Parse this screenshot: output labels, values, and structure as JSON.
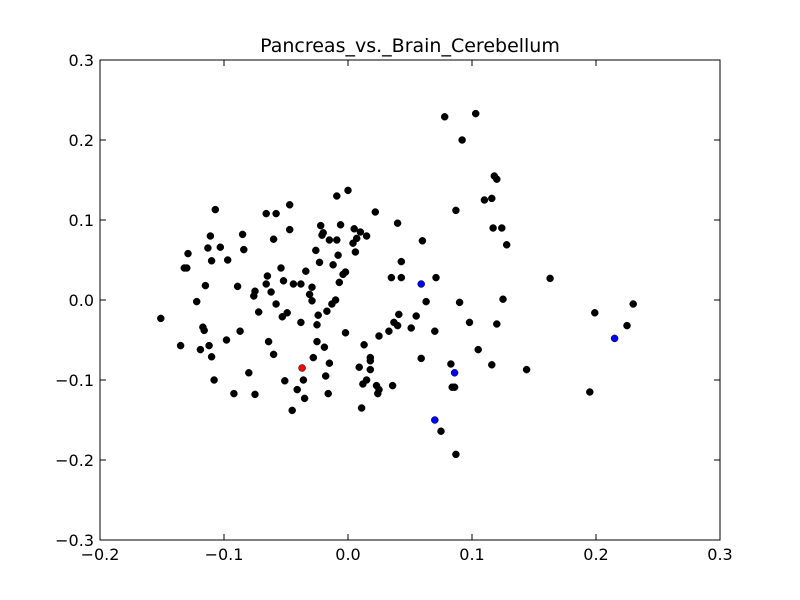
{
  "chart_data": {
    "type": "scatter",
    "title": "Pancreas_vs._Brain_Cerebellum",
    "xlabel": "",
    "ylabel": "",
    "xlim": [
      -0.2,
      0.3
    ],
    "ylim": [
      -0.3,
      0.3
    ],
    "x_ticks": [
      -0.2,
      -0.1,
      0.0,
      0.1,
      0.2,
      0.3
    ],
    "y_ticks": [
      -0.3,
      -0.2,
      -0.1,
      0.0,
      0.1,
      0.2,
      0.3
    ],
    "x_tick_labels": [
      "−0.2",
      "−0.1",
      "0.0",
      "0.1",
      "0.2",
      "0.3"
    ],
    "y_tick_labels": [
      "−0.3",
      "−0.2",
      "−0.1",
      "0.0",
      "0.1",
      "0.2",
      "0.3"
    ],
    "grid": false,
    "legend": "none",
    "series": [
      {
        "color": "#000000",
        "points": [
          [
            -0.151,
            -0.023
          ],
          [
            -0.135,
            -0.057
          ],
          [
            -0.132,
            0.04
          ],
          [
            -0.13,
            0.04
          ],
          [
            -0.129,
            0.058
          ],
          [
            -0.122,
            -0.002
          ],
          [
            -0.119,
            -0.062
          ],
          [
            -0.117,
            -0.034
          ],
          [
            -0.116,
            -0.038
          ],
          [
            -0.115,
            0.018
          ],
          [
            -0.113,
            0.065
          ],
          [
            -0.112,
            -0.057
          ],
          [
            -0.111,
            0.08
          ],
          [
            -0.11,
            0.049
          ],
          [
            -0.11,
            -0.071
          ],
          [
            -0.108,
            -0.1
          ],
          [
            -0.107,
            0.113
          ],
          [
            -0.103,
            0.066
          ],
          [
            -0.098,
            -0.05
          ],
          [
            -0.097,
            0.05
          ],
          [
            -0.092,
            -0.117
          ],
          [
            -0.089,
            0.017
          ],
          [
            -0.087,
            -0.039
          ],
          [
            -0.085,
            0.082
          ],
          [
            -0.084,
            0.063
          ],
          [
            -0.08,
            -0.091
          ],
          [
            -0.076,
            0.005
          ],
          [
            -0.075,
            -0.118
          ],
          [
            -0.075,
            0.011
          ],
          [
            -0.072,
            -0.015
          ],
          [
            -0.066,
            0.108
          ],
          [
            -0.066,
            0.02
          ],
          [
            -0.065,
            0.03
          ],
          [
            -0.064,
            -0.052
          ],
          [
            -0.062,
            0.01
          ],
          [
            -0.06,
            0.076
          ],
          [
            -0.06,
            -0.068
          ],
          [
            -0.058,
            0.108
          ],
          [
            -0.058,
            -0.005
          ],
          [
            -0.054,
            0.04
          ],
          [
            -0.053,
            -0.021
          ],
          [
            -0.052,
            0.024
          ],
          [
            -0.051,
            -0.101
          ],
          [
            -0.049,
            -0.016
          ],
          [
            -0.047,
            0.088
          ],
          [
            -0.047,
            0.119
          ],
          [
            -0.045,
            -0.138
          ],
          [
            -0.044,
            0.02
          ],
          [
            -0.041,
            -0.112
          ],
          [
            -0.038,
            -0.028
          ],
          [
            -0.038,
            0.02
          ],
          [
            -0.036,
            -0.1
          ],
          [
            -0.035,
            -0.123
          ],
          [
            -0.034,
            0.036
          ],
          [
            -0.031,
            0.007
          ],
          [
            -0.029,
            -0.001
          ],
          [
            -0.029,
            0.016
          ],
          [
            -0.028,
            -0.072
          ],
          [
            -0.026,
            0.062
          ],
          [
            -0.025,
            -0.031
          ],
          [
            -0.025,
            -0.052
          ],
          [
            -0.024,
            -0.019
          ],
          [
            -0.023,
            0.047
          ],
          [
            -0.022,
            0.093
          ],
          [
            -0.021,
            0.081
          ],
          [
            -0.02,
            0.084
          ],
          [
            -0.019,
            -0.059
          ],
          [
            -0.018,
            -0.095
          ],
          [
            -0.017,
            -0.014
          ],
          [
            -0.016,
            -0.117
          ],
          [
            -0.015,
            0.075
          ],
          [
            -0.015,
            -0.079
          ],
          [
            -0.013,
            -0.005
          ],
          [
            -0.012,
            0.044
          ],
          [
            -0.01,
            0.0
          ],
          [
            -0.009,
            0.075
          ],
          [
            -0.009,
            0.13
          ],
          [
            -0.008,
            0.056
          ],
          [
            -0.007,
            0.022
          ],
          [
            -0.006,
            0.094
          ],
          [
            -0.004,
            0.032
          ],
          [
            -0.002,
            -0.041
          ],
          [
            -0.002,
            0.035
          ],
          [
            0.0,
            0.137
          ],
          [
            0.004,
            0.071
          ],
          [
            0.005,
            0.089
          ],
          [
            0.006,
            0.06
          ],
          [
            0.007,
            0.077
          ],
          [
            0.009,
            -0.084
          ],
          [
            0.01,
            0.085
          ],
          [
            0.011,
            -0.135
          ],
          [
            0.012,
            -0.105
          ],
          [
            0.013,
            -0.056
          ],
          [
            0.015,
            0.08
          ],
          [
            0.015,
            -0.1
          ],
          [
            0.018,
            -0.072
          ],
          [
            0.018,
            -0.076
          ],
          [
            0.018,
            -0.087
          ],
          [
            0.022,
            0.11
          ],
          [
            0.023,
            -0.107
          ],
          [
            0.024,
            -0.117
          ],
          [
            0.025,
            -0.045
          ],
          [
            0.025,
            -0.112
          ],
          [
            0.033,
            -0.039
          ],
          [
            0.035,
            0.028
          ],
          [
            0.036,
            -0.107
          ],
          [
            0.037,
            -0.028
          ],
          [
            0.04,
            0.096
          ],
          [
            0.04,
            -0.032
          ],
          [
            0.041,
            -0.018
          ],
          [
            0.043,
            0.028
          ],
          [
            0.043,
            0.048
          ],
          [
            0.051,
            -0.035
          ],
          [
            0.055,
            -0.02
          ],
          [
            0.059,
            -0.073
          ],
          [
            0.06,
            0.074
          ],
          [
            0.063,
            -0.002
          ],
          [
            0.07,
            -0.039
          ],
          [
            0.071,
            0.028
          ],
          [
            0.075,
            -0.164
          ],
          [
            0.078,
            0.229
          ],
          [
            0.083,
            -0.08
          ],
          [
            0.084,
            -0.109
          ],
          [
            0.086,
            -0.109
          ],
          [
            0.087,
            0.112
          ],
          [
            0.087,
            -0.193
          ],
          [
            0.09,
            -0.003
          ],
          [
            0.092,
            0.2
          ],
          [
            0.098,
            -0.028
          ],
          [
            0.103,
            0.233
          ],
          [
            0.105,
            -0.062
          ],
          [
            0.11,
            0.125
          ],
          [
            0.116,
            0.127
          ],
          [
            0.116,
            -0.081
          ],
          [
            0.117,
            0.09
          ],
          [
            0.118,
            0.155
          ],
          [
            0.12,
            0.151
          ],
          [
            0.12,
            -0.03
          ],
          [
            0.124,
            0.09
          ],
          [
            0.125,
            0.001
          ],
          [
            0.128,
            0.069
          ],
          [
            0.144,
            -0.087
          ],
          [
            0.163,
            0.027
          ],
          [
            0.195,
            -0.115
          ],
          [
            0.199,
            -0.016
          ],
          [
            0.225,
            -0.032
          ],
          [
            0.23,
            -0.005
          ]
        ]
      },
      {
        "color": "#0000ff",
        "points": [
          [
            0.059,
            0.02
          ],
          [
            0.086,
            -0.091
          ],
          [
            0.07,
            -0.15
          ],
          [
            0.215,
            -0.048
          ]
        ]
      },
      {
        "color": "#ff0000",
        "points": [
          [
            -0.037,
            -0.085
          ]
        ]
      }
    ]
  }
}
